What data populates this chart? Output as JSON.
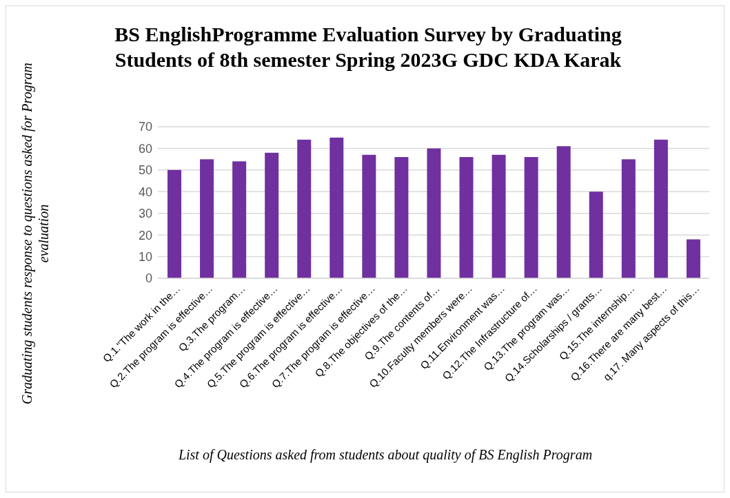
{
  "chart_data": {
    "type": "bar",
    "title": "BS EnglishProgramme Evaluation Survey by Graduating Students of  8th semester Spring 2023G GDC KDA Karak",
    "xlabel": "List of Questions asked from students about quality of BS English Program",
    "ylabel": "Graduating students response to questions asked for Program evaluation",
    "categories": [
      "Q.1.\"The work in the…",
      "Q.2.The program is effective…",
      "Q.3.The program…",
      "Q.4.The program is effective…",
      "Q.5.The program is effective…",
      "Q.6.The program is effective…",
      "Q.7.The program is effective…",
      "Q.8.The objectives of the…",
      "Q.9.The contents of…",
      "Q.10.Faculty members were…",
      "Q.11.Environment was…",
      "Q.12.The Infrastructure of…",
      "Q.13.The program was…",
      "Q.14.Scholarships / grants…",
      "Q.15.The internship…",
      "Q.16.There are many best…",
      "q.17. Many aspects of this…"
    ],
    "values": [
      50,
      55,
      54,
      58,
      64,
      65,
      57,
      56,
      60,
      56,
      57,
      56,
      61,
      40,
      55,
      64,
      18
    ],
    "color": "#7030a0",
    "ylim": [
      0,
      70
    ],
    "yticks": [
      0,
      10,
      20,
      30,
      40,
      50,
      60,
      70
    ],
    "grid": "y",
    "legend": false
  }
}
